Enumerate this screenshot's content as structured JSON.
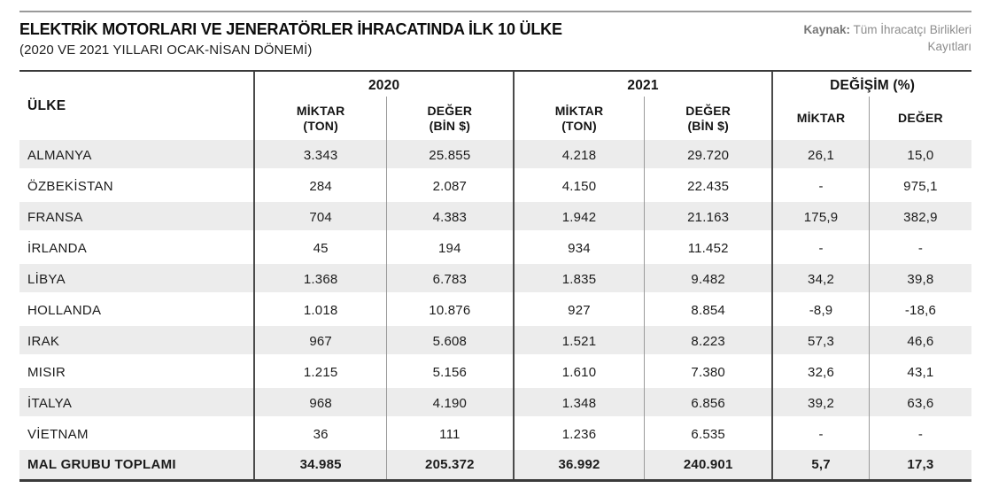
{
  "theme": {
    "row_stripe": "#ececec",
    "dark_line": "#4a4a4a",
    "frame_line": "#3a3a3a",
    "light_line": "#9a9a9a",
    "top_rule": "#9a9a9a",
    "source_gray": "#8d8d8d"
  },
  "header": {
    "title": "ELEKTRİK MOTORLARI VE JENERATÖRLER İHRACATINDA İLK 10 ÜLKE",
    "subtitle": "(2020 VE 2021 YILLARI OCAK-NİSAN DÖNEMİ)",
    "source_label": "Kaynak:",
    "source_text": " Tüm İhracatçı Birlikleri Kayıtları"
  },
  "table": {
    "country_header": "ÜLKE",
    "groups": [
      {
        "label": "2020",
        "sub": [
          {
            "l1": "MİKTAR",
            "l2": "(TON)"
          },
          {
            "l1": "DEĞER",
            "l2": "(BİN $)"
          }
        ]
      },
      {
        "label": "2021",
        "sub": [
          {
            "l1": "MİKTAR",
            "l2": "(TON)"
          },
          {
            "l1": "DEĞER",
            "l2": "(BİN $)"
          }
        ]
      },
      {
        "label": "DEĞİŞİM (%)",
        "sub": [
          {
            "l1": "MİKTAR",
            "l2": ""
          },
          {
            "l1": "DEĞER",
            "l2": ""
          }
        ]
      }
    ]
  },
  "chart_data": {
    "type": "table",
    "title": "ELEKTRİK MOTORLARI VE JENERATÖRLER İHRACATINDA İLK 10 ÜLKE",
    "subtitle": "(2020 VE 2021 YILLARI OCAK-NİSAN DÖNEMİ)",
    "source": "Kaynak: Tüm İhracatçı Birlikleri Kayıtları",
    "columns": [
      "ÜLKE",
      "2020 MİKTAR (TON)",
      "2020 DEĞER (BİN $)",
      "2021 MİKTAR (TON)",
      "2021 DEĞER (BİN $)",
      "DEĞİŞİM (%) MİKTAR",
      "DEĞİŞİM (%) DEĞER"
    ],
    "rows": [
      [
        "ALMANYA",
        "3.343",
        "25.855",
        "4.218",
        "29.720",
        "26,1",
        "15,0"
      ],
      [
        "ÖZBEKİSTAN",
        "284",
        "2.087",
        "4.150",
        "22.435",
        "-",
        "975,1"
      ],
      [
        "FRANSA",
        "704",
        "4.383",
        "1.942",
        "21.163",
        "175,9",
        "382,9"
      ],
      [
        "İRLANDA",
        "45",
        "194",
        "934",
        "11.452",
        "-",
        "-"
      ],
      [
        "LİBYA",
        "1.368",
        "6.783",
        "1.835",
        "9.482",
        "34,2",
        "39,8"
      ],
      [
        "HOLLANDA",
        "1.018",
        "10.876",
        "927",
        "8.854",
        "-8,9",
        "-18,6"
      ],
      [
        "IRAK",
        "967",
        "5.608",
        "1.521",
        "8.223",
        "57,3",
        "46,6"
      ],
      [
        "MISIR",
        "1.215",
        "5.156",
        "1.610",
        "7.380",
        "32,6",
        "43,1"
      ],
      [
        "İTALYA",
        "968",
        "4.190",
        "1.348",
        "6.856",
        "39,2",
        "63,6"
      ],
      [
        "VİETNAM",
        "36",
        "111",
        "1.236",
        "6.535",
        "-",
        "-"
      ]
    ],
    "total_row": [
      "MAL GRUBU TOPLAMI",
      "34.985",
      "205.372",
      "36.992",
      "240.901",
      "5,7",
      "17,3"
    ]
  }
}
